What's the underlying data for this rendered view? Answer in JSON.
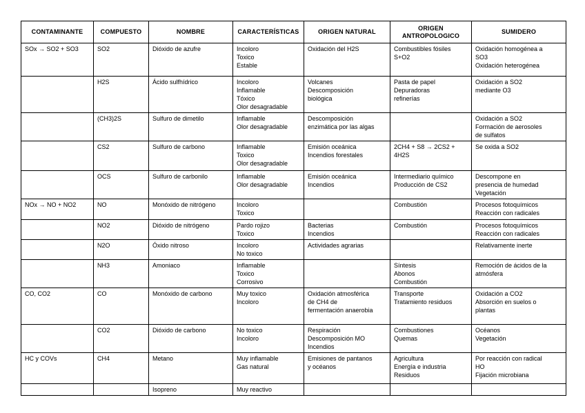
{
  "page": {
    "background_color": "#ffffff",
    "border_color": "#000000"
  },
  "table": {
    "headers": [
      {
        "key": "contaminante",
        "label": "CONTAMINANTE"
      },
      {
        "key": "compuesto",
        "label": "COMPUESTO"
      },
      {
        "key": "nombre",
        "label": "NOMBRE"
      },
      {
        "key": "caracteristicas",
        "label": "CARACTERÍSTICAS"
      },
      {
        "key": "origen_natural",
        "label": "ORIGEN NATURAL"
      },
      {
        "key": "origen_antropologico",
        "label": "ORIGEN ANTROPOLOGICO"
      },
      {
        "key": "sumidero",
        "label": "SUMIDERO"
      }
    ],
    "rows": [
      {
        "contaminante": [
          "SOx → SO2 + SO3"
        ],
        "compuesto": [
          "SO2"
        ],
        "nombre": [
          "Dióxido de azufre"
        ],
        "caracteristicas": [
          "Incoloro",
          "Toxico",
          "Estable"
        ],
        "origen_natural": [
          "Oxidación del H2S"
        ],
        "origen_antropologico": [
          "Combustibles fósiles",
          "S+O2"
        ],
        "sumidero": [
          "Oxidación homogénea a",
          "SO3",
          "Oxidación heterogénea"
        ]
      },
      {
        "contaminante": [],
        "compuesto": [
          "H2S"
        ],
        "nombre": [
          "Ácido sulfhídrico"
        ],
        "caracteristicas": [
          "Incoloro",
          "Inflamable",
          "Tóxico",
          "Olor desagradable"
        ],
        "origen_natural": [
          "Volcanes",
          "Descomposición",
          "biológica"
        ],
        "origen_antropologico": [
          "Pasta de papel",
          "Depuradoras",
          "refinerías"
        ],
        "sumidero": [
          "Oxidación a SO2",
          "mediante O3"
        ]
      },
      {
        "contaminante": [],
        "compuesto": [
          "(CH3)2S"
        ],
        "nombre": [
          "Sulfuro de dimetilo"
        ],
        "caracteristicas": [
          "Inflamable",
          "Olor desagradable"
        ],
        "origen_natural": [
          "Descomposición",
          "enzimática por las algas"
        ],
        "origen_antropologico": [],
        "sumidero": [
          "Oxidación a SO2",
          "Formación de aerosoles",
          "de sulfatos"
        ]
      },
      {
        "contaminante": [],
        "compuesto": [
          "CS2"
        ],
        "nombre": [
          "Sulfuro de carbono"
        ],
        "caracteristicas": [
          "Inflamable",
          "Toxico",
          "Olor desagradable"
        ],
        "origen_natural": [
          "Emisión oceánica",
          "Incendios forestales"
        ],
        "origen_antropologico": [
          "2CH4 + S8 → 2CS2 +",
          "4H2S"
        ],
        "sumidero": [
          "Se oxida a SO2"
        ]
      },
      {
        "contaminante": [],
        "compuesto": [
          "OCS"
        ],
        "nombre": [
          "Sulfuro de carbonilo"
        ],
        "caracteristicas": [
          "Inflamable",
          "Olor desagradable"
        ],
        "origen_natural": [
          "Emisión oceánica",
          "Incendios"
        ],
        "origen_antropologico": [
          "Intermediario químico",
          "Producción de CS2"
        ],
        "sumidero": [
          "Descompone en",
          "presencia de humedad",
          "Vegetación"
        ]
      },
      {
        "contaminante": [
          "NOx → NO + NO2"
        ],
        "compuesto": [
          "NO"
        ],
        "nombre": [
          "Monóxido de nitrógeno"
        ],
        "caracteristicas": [
          "Incoloro",
          "Toxico"
        ],
        "origen_natural": [],
        "origen_antropologico": [
          "Combustión"
        ],
        "sumidero": [
          "Procesos fotoquímicos",
          "Reacción con radicales"
        ]
      },
      {
        "contaminante": [],
        "compuesto": [
          "NO2"
        ],
        "nombre": [
          "Dióxido de nitrógeno"
        ],
        "caracteristicas": [
          "Pardo rojizo",
          "Toxico"
        ],
        "origen_natural": [
          "Bacterias",
          "Incendios"
        ],
        "origen_antropologico": [
          "Combustión"
        ],
        "sumidero": [
          "Procesos fotoquímicos",
          "Reacción con radicales"
        ]
      },
      {
        "contaminante": [],
        "compuesto": [
          "N2O"
        ],
        "nombre": [
          "Óxido nitroso"
        ],
        "caracteristicas": [
          "Incoloro",
          "No toxico"
        ],
        "origen_natural": [
          "Actividades agrarias"
        ],
        "origen_antropologico": [],
        "sumidero": [
          "Relativamente inerte"
        ]
      },
      {
        "contaminante": [],
        "compuesto": [
          "NH3"
        ],
        "nombre": [
          "Amoniaco"
        ],
        "caracteristicas": [
          "Inflamable",
          "Toxico",
          "Corrosivo"
        ],
        "origen_natural": [],
        "origen_antropologico": [
          "Síntesis",
          "Abonos",
          "Combustión"
        ],
        "sumidero": [
          "Remoción de ácidos de la",
          "atmósfera"
        ]
      },
      {
        "contaminante": [
          "CO, CO2"
        ],
        "compuesto": [
          "CO"
        ],
        "nombre": [
          "Monóxido de carbono"
        ],
        "caracteristicas": [
          "Muy toxico",
          "Incoloro"
        ],
        "origen_natural": [
          "Oxidación atmosférica",
          "de CH4 de",
          "fermentación anaerobia"
        ],
        "origen_antropologico": [
          "Transporte",
          "Tratamiento residuos"
        ],
        "sumidero": [
          "Oxidación a CO2",
          "Absorción en suelos o",
          "plantas"
        ]
      },
      {
        "contaminante": [],
        "compuesto": [
          "CO2"
        ],
        "nombre": [
          "Dióxido de carbono"
        ],
        "caracteristicas": [
          "No toxico",
          "Incoloro"
        ],
        "origen_natural": [
          "Respiración",
          "Descomposición MO",
          "Incendios"
        ],
        "origen_antropologico": [
          "Combustiones",
          "Quemas"
        ],
        "sumidero": [
          "Océanos",
          "Vegetación"
        ]
      },
      {
        "contaminante": [
          "HC y COVs"
        ],
        "compuesto": [
          "CH4"
        ],
        "nombre": [
          "Metano"
        ],
        "caracteristicas": [
          "Muy inflamable",
          "Gas natural"
        ],
        "origen_natural": [
          "Emisiones de pantanos",
          "y océanos"
        ],
        "origen_antropologico": [
          "Agricultura",
          "Energía e industria",
          "Residuos"
        ],
        "sumidero": [
          "Por reacción con radical",
          "HO",
          "Fijación microbiana"
        ]
      },
      {
        "contaminante": [],
        "compuesto": [],
        "nombre": [
          "Isopreno"
        ],
        "caracteristicas": [
          "Muy reactivo"
        ],
        "origen_natural": [],
        "origen_antropologico": [],
        "sumidero": []
      }
    ]
  }
}
